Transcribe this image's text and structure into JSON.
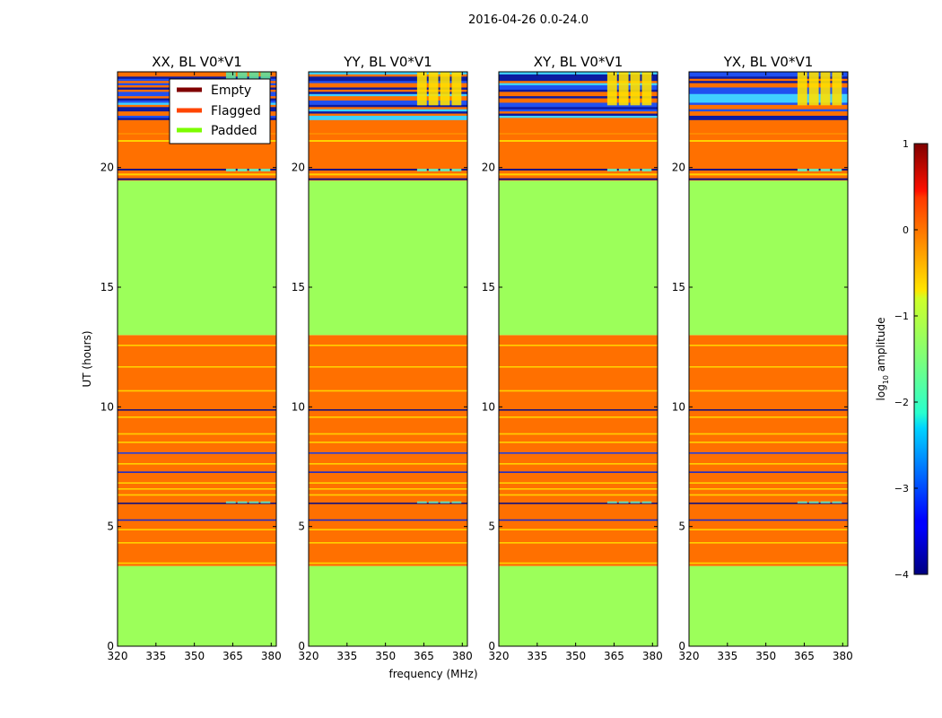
{
  "chart_data": {
    "type": "heatmap",
    "suptitle": "2016-04-26 0.0-24.0",
    "xlabel": "frequency (MHz)",
    "ylabel": "UT (hours)",
    "xlim": [
      320,
      382
    ],
    "ylim": [
      0,
      24
    ],
    "xticks": [
      "320",
      "335",
      "350",
      "365",
      "380"
    ],
    "yticks": [
      "0",
      "5",
      "10",
      "15",
      "20"
    ],
    "panels": [
      {
        "title": "XX, BL V0*V1"
      },
      {
        "title": "YY, BL V0*V1"
      },
      {
        "title": "XY, BL V0*V1"
      },
      {
        "title": "YX, BL V0*V1"
      }
    ],
    "legend": {
      "location": "top-right of first panel",
      "entries": [
        {
          "label": "Empty",
          "color": "#800000"
        },
        {
          "label": "Flagged",
          "color": "#ff4500"
        },
        {
          "label": "Padded",
          "color": "#7cfc00"
        }
      ]
    },
    "colorbar": {
      "label_main": "log",
      "label_sub": "10",
      "label_tail": " amplitude",
      "range": [
        -4,
        1
      ],
      "ticks": [
        "1",
        "0",
        "−1",
        "−2",
        "−3",
        "−4"
      ]
    },
    "regions": [
      {
        "ut_start": 0.0,
        "ut_end": 3.35,
        "state": "padded"
      },
      {
        "ut_start": 3.35,
        "ut_end": 13.0,
        "state": "flagged"
      },
      {
        "ut_start": 13.0,
        "ut_end": 19.45,
        "state": "padded"
      },
      {
        "ut_start": 19.45,
        "ut_end": 22.0,
        "state": "flagged"
      },
      {
        "ut_start": 22.0,
        "ut_end": 24.0,
        "state": "data"
      }
    ],
    "data_frequency_band_mhz": [
      362,
      380
    ],
    "colors": {
      "padded": "#9cff5a",
      "flagged": "#ff7000",
      "data_low": "#1030e0",
      "data_high": "#ffe000"
    }
  }
}
